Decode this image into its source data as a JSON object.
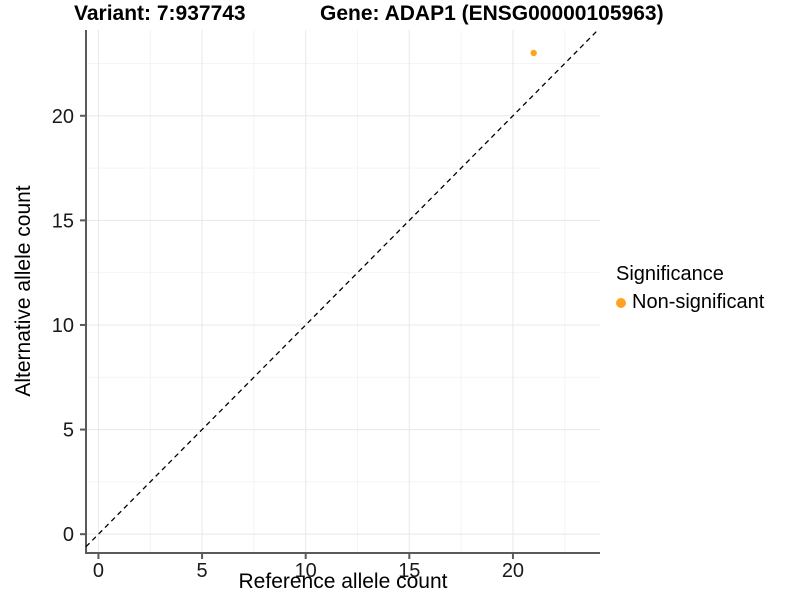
{
  "chart_data": {
    "type": "scatter",
    "titles": {
      "variant": "Variant: 7:937743",
      "gene": "Gene: ADAP1 (ENSG00000105963)"
    },
    "xlabel": "Reference allele count",
    "ylabel": "Alternative allele count",
    "xlim": [
      -0.6,
      24.2
    ],
    "ylim": [
      -0.9,
      24.1
    ],
    "x_ticks": [
      0,
      5,
      10,
      15,
      20
    ],
    "y_ticks": [
      0,
      5,
      10,
      15,
      20
    ],
    "x_minor_gridlines": [
      2.5,
      7.5,
      12.5,
      17.5,
      22.5
    ],
    "y_minor_gridlines": [
      2.5,
      7.5,
      12.5,
      17.5,
      22.5
    ],
    "grid": "major+minor",
    "identity_line": {
      "equation": "y = x",
      "style": "dashed",
      "color": "#000000"
    },
    "series": [
      {
        "name": "Non-significant",
        "color": "#FFA320",
        "points": [
          {
            "x": 21,
            "y": 23
          }
        ]
      }
    ],
    "legend": {
      "title": "Significance",
      "position": "right"
    }
  },
  "colors": {
    "background": "#ffffff",
    "grid_major": "#e8e8e8",
    "grid_minor": "#f4f4f4",
    "axis_line": "#5a5a5a",
    "tick_label": "#1a1a1a",
    "title_text": "#000000"
  }
}
